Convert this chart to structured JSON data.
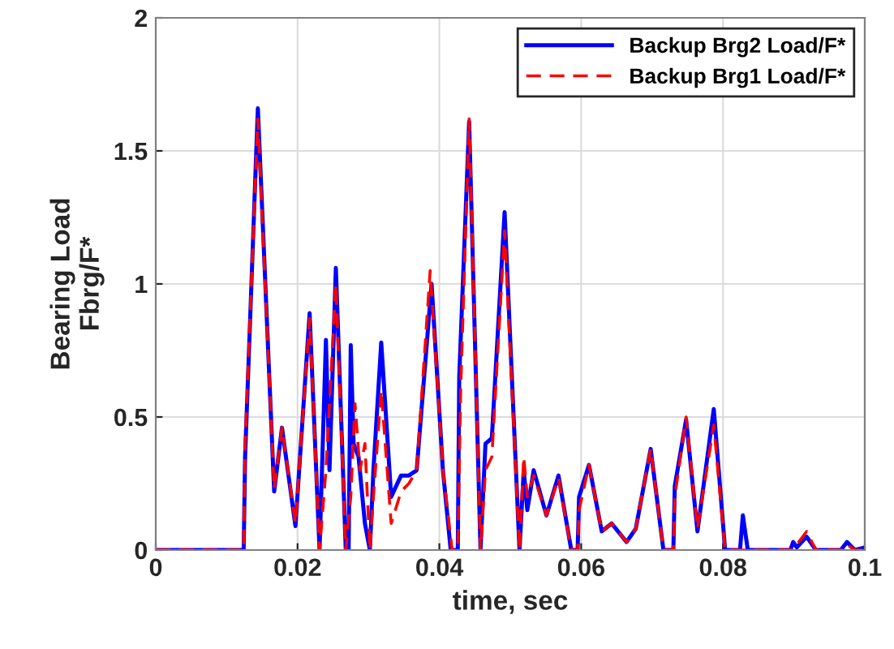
{
  "chart_data": {
    "type": "line",
    "xlabel": "time, sec",
    "ylabel": "Bearing Load\nFbrg/F*",
    "xlim": [
      0,
      0.1
    ],
    "ylim": [
      0,
      2
    ],
    "xticks": [
      0,
      0.02,
      0.04,
      0.06,
      0.08,
      0.1
    ],
    "yticks": [
      0,
      0.5,
      1,
      1.5,
      2
    ],
    "grid": true,
    "legend": "top right",
    "marker": "none",
    "series": [
      {
        "name": "Backup Brg2 Load/F*",
        "color": "#0000ff",
        "line_style": "solid",
        "x": [
          0,
          0.0124,
          0.0126,
          0.0144,
          0.0167,
          0.0178,
          0.0197,
          0.0217,
          0.0231,
          0.024,
          0.0245,
          0.0254,
          0.0268,
          0.0272,
          0.0275,
          0.0279,
          0.0286,
          0.0295,
          0.0302,
          0.0307,
          0.0318,
          0.0332,
          0.0346,
          0.0357,
          0.0368,
          0.0389,
          0.0405,
          0.0416,
          0.0426,
          0.0428,
          0.0442,
          0.0458,
          0.0465,
          0.0474,
          0.0492,
          0.0513,
          0.0519,
          0.0524,
          0.0533,
          0.0551,
          0.0568,
          0.0586,
          0.0595,
          0.0597,
          0.0611,
          0.0629,
          0.0643,
          0.0664,
          0.0677,
          0.0698,
          0.0716,
          0.073,
          0.0732,
          0.0748,
          0.0764,
          0.0787,
          0.0803,
          0.0824,
          0.0828,
          0.0835,
          0.0895,
          0.0899,
          0.0904,
          0.0918,
          0.0931,
          0.0966,
          0.0975,
          0.0986,
          0.1
        ],
        "values": [
          0,
          0,
          0.35,
          1.66,
          0.22,
          0.46,
          0.09,
          0.89,
          0,
          0.79,
          0.3,
          1.06,
          0,
          0,
          0.77,
          0.4,
          0.35,
          0.1,
          0,
          0.3,
          0.78,
          0.2,
          0.28,
          0.28,
          0.3,
          1.0,
          0.3,
          0,
          0,
          0.65,
          1.61,
          0,
          0.4,
          0.42,
          1.27,
          0,
          0.3,
          0.15,
          0.3,
          0.13,
          0.28,
          0,
          0,
          0.2,
          0.32,
          0.07,
          0.1,
          0.03,
          0.08,
          0.38,
          0,
          0,
          0.24,
          0.49,
          0.07,
          0.53,
          0,
          0,
          0.13,
          0,
          0,
          0.03,
          0.01,
          0.05,
          0,
          0,
          0.03,
          0,
          0.01
        ]
      },
      {
        "name": "Backup Brg1 Load/F*",
        "color": "#ff0000",
        "line_style": "dashed",
        "x": [
          0,
          0.0124,
          0.0126,
          0.0144,
          0.0167,
          0.0178,
          0.0197,
          0.0217,
          0.0231,
          0.024,
          0.0245,
          0.0254,
          0.0268,
          0.0275,
          0.0281,
          0.0288,
          0.0295,
          0.0302,
          0.0307,
          0.0318,
          0.0332,
          0.0346,
          0.0357,
          0.0368,
          0.0387,
          0.0405,
          0.0418,
          0.0426,
          0.043,
          0.0442,
          0.0458,
          0.0465,
          0.0474,
          0.0492,
          0.0513,
          0.0519,
          0.0524,
          0.0533,
          0.0551,
          0.0568,
          0.0586,
          0.0595,
          0.0597,
          0.0611,
          0.0629,
          0.0643,
          0.0664,
          0.0677,
          0.0698,
          0.0716,
          0.073,
          0.0732,
          0.0748,
          0.0764,
          0.0787,
          0.0803,
          0.0895,
          0.0904,
          0.0918,
          0.0931,
          0.0966,
          0.0975,
          0.0986,
          0.1
        ],
        "values": [
          0,
          0,
          0.4,
          1.62,
          0.23,
          0.46,
          0.1,
          0.87,
          0,
          0.3,
          0.55,
          1.0,
          0,
          0.2,
          0.55,
          0.3,
          0.4,
          0,
          0.2,
          0.6,
          0.1,
          0.22,
          0.25,
          0.3,
          1.05,
          0.3,
          0,
          0,
          0.6,
          1.62,
          0,
          0.3,
          0.35,
          1.2,
          0,
          0.35,
          0.2,
          0.28,
          0.13,
          0.27,
          0,
          0,
          0.15,
          0.32,
          0.07,
          0.1,
          0.03,
          0.08,
          0.38,
          0,
          0,
          0.2,
          0.5,
          0.08,
          0.47,
          0,
          0,
          0.02,
          0.07,
          0,
          0,
          0.02,
          0,
          0
        ]
      }
    ]
  }
}
